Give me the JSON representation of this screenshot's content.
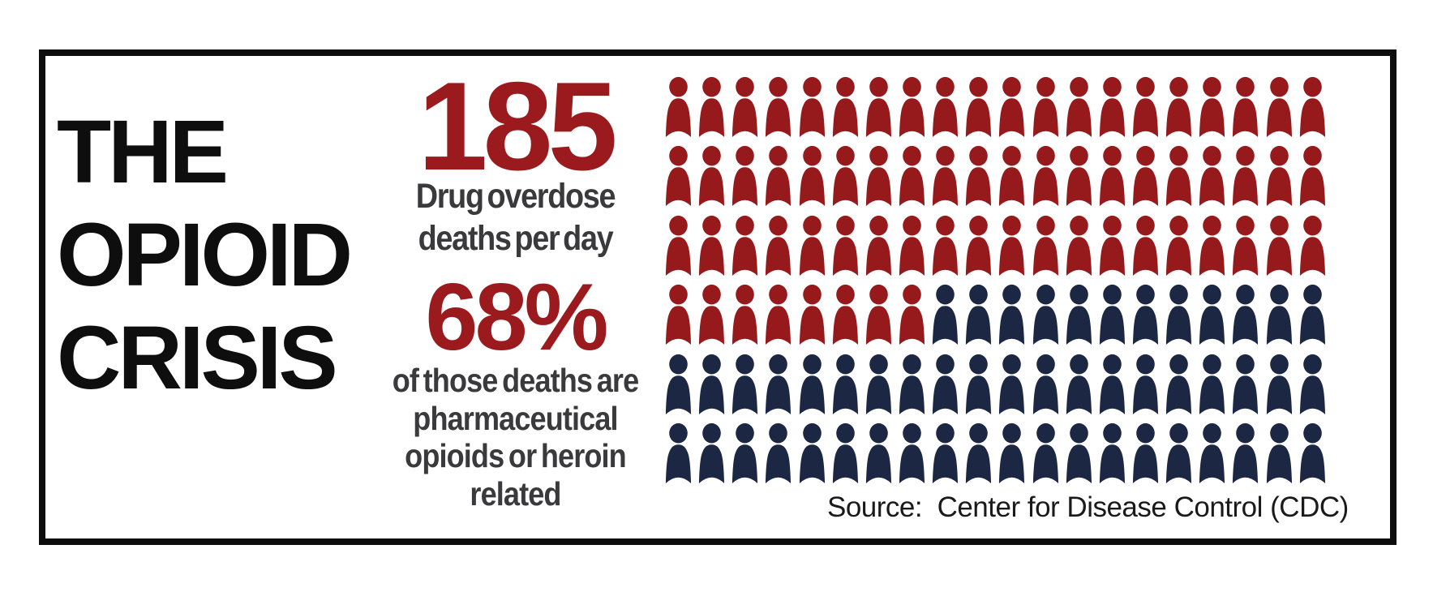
{
  "page": {
    "background": "#ffffff",
    "border_color": "#0d0d0d"
  },
  "title": {
    "line1": "THE",
    "line2": "OPIOID",
    "line3": "CRISIS"
  },
  "stats": {
    "deaths": {
      "value": "185",
      "label_line1": "Drug overdose",
      "label_line2": "deaths per day"
    },
    "percent": {
      "value": "68%",
      "label_line1": "of those deaths are",
      "label_line2": "pharmaceutical",
      "label_line3": "opioids or heroin",
      "label_line4": "related"
    }
  },
  "source": {
    "label": "Source:  Center for Disease Control (CDC)"
  },
  "colors": {
    "stat_red": "#9a1a1e",
    "icon_red": "#96191c",
    "icon_navy": "#1b2743",
    "label_gray": "#3a3a3c",
    "title_black": "#0e0e0e",
    "source_black": "#1a1a1a",
    "border_color": "#0d0d0d"
  },
  "chart_data": {
    "type": "pictogram",
    "title": "THE OPIOID CRISIS",
    "icon": "person",
    "grid": {
      "rows": 6,
      "columns": 20,
      "total_icons": 120
    },
    "fill_order": "row-major, left-to-right, top-to-bottom; red icons first, then navy",
    "series": [
      {
        "name": "Drug overdose deaths per day",
        "stat_value": 185,
        "icon_count": 68,
        "color": "#96191c"
      },
      {
        "name": "Of those deaths, pharmaceutical opioids or heroin related",
        "stat_value_percent": 68,
        "icon_count": 52,
        "color": "#1b2743"
      }
    ],
    "annotations": [
      "185 Drug overdose deaths per day",
      "68% of those deaths are pharmaceutical opioids or heroin related"
    ],
    "source": "Source:  Center for Disease Control (CDC)",
    "legend_position": "none",
    "grid_lines": false
  }
}
